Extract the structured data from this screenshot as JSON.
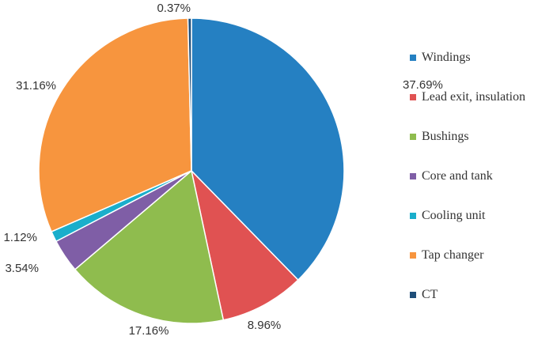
{
  "chart_data": {
    "type": "pie",
    "title": "",
    "legend_position": "right",
    "slices": [
      {
        "label": "Windings",
        "value": 37.69,
        "value_label": "37.69%",
        "color": "#2580c2"
      },
      {
        "label": "Lead exit, insulation",
        "value": 8.96,
        "value_label": "8.96%",
        "color": "#e05252"
      },
      {
        "label": "Bushings",
        "value": 17.16,
        "value_label": "17.16%",
        "color": "#8fbc4e"
      },
      {
        "label": "Core and tank",
        "value": 3.54,
        "value_label": "3.54%",
        "color": "#7f5ea6"
      },
      {
        "label": "Cooling unit",
        "value": 1.12,
        "value_label": "1.12%",
        "color": "#1aaecb"
      },
      {
        "label": "Tap changer",
        "value": 31.16,
        "value_label": "31.16%",
        "color": "#f7953e"
      },
      {
        "label": "CT",
        "value": 0.37,
        "value_label": "0.37%",
        "color": "#1f4e79"
      }
    ]
  }
}
